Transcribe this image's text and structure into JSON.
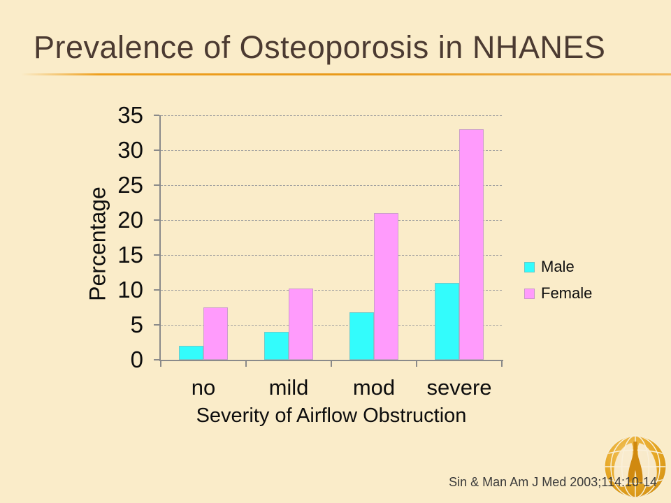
{
  "slide": {
    "title": "Prevalence of Osteoporosis in NHANES",
    "citation": "Sin & Man Am J Med 2003;114:10-14"
  },
  "chart_data": {
    "type": "bar",
    "title": "",
    "categories": [
      "no",
      "mild",
      "mod",
      "severe"
    ],
    "series": [
      {
        "name": "Male",
        "color": "#33FCFC",
        "values": [
          2,
          4,
          6.8,
          11
        ]
      },
      {
        "name": "Female",
        "color": "#FF9BFC",
        "values": [
          7.5,
          10.2,
          21,
          33
        ]
      }
    ],
    "xlabel": "Severity of Airflow Obstruction",
    "ylabel": "Percentage",
    "ylim": [
      0,
      35
    ],
    "ytick_step": 5,
    "grid": "horizontal-dashed",
    "legend_position": "right"
  },
  "legend": {
    "male_label": "Male",
    "female_label": "Female"
  },
  "colors": {
    "background": "#FAECC9",
    "title_text": "#4B3A31",
    "divider_orange": "#EE9F1D",
    "axis": "#8A8A8A",
    "gridline": "#9F9F9F",
    "chart_text": "#0D0D0D",
    "citation_text": "#3A3A3A",
    "male_bar": "#33FCFC",
    "female_bar": "#FF9BFC",
    "logo_gold": "#E2A01C"
  },
  "logo": {
    "name": "globe-lungs-logo"
  }
}
